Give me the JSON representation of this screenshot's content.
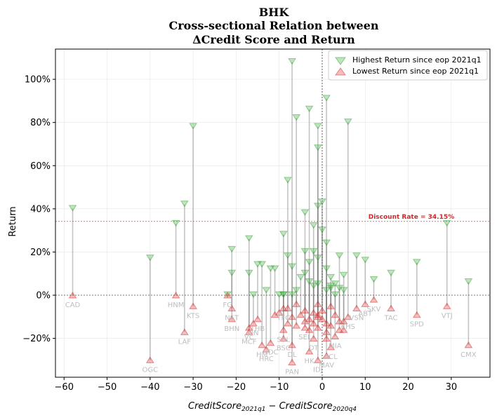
{
  "chart_data": {
    "type": "scatter",
    "title_lines": [
      "BHK",
      "Cross-sectional Relation between",
      "ΔCredit Score and Return"
    ],
    "xlabel_main": "CreditScore",
    "xlabel_sub1": "2021q1",
    "xlabel_minus": " − CreditScore",
    "xlabel_sub2": "2020q4",
    "ylabel": "Return",
    "xlim": [
      -62,
      39
    ],
    "ylim": [
      -38,
      114
    ],
    "xticks": [
      -60,
      -50,
      -40,
      -30,
      -20,
      -10,
      0,
      10,
      20,
      30
    ],
    "xtick_labels": [
      "−60",
      "−50",
      "−40",
      "−30",
      "−20",
      "−10",
      "0",
      "10",
      "20",
      "30"
    ],
    "yticks": [
      -20,
      0,
      20,
      40,
      60,
      80,
      100
    ],
    "ytick_labels": [
      "−20%",
      "0%",
      "20%",
      "40%",
      "60%",
      "80%",
      "100%"
    ],
    "grid": true,
    "legend_position": "top-right",
    "legend": [
      "Highest Return since eop 2021q1",
      "Lowest Return since eop 2021q1"
    ],
    "high_color": "#2ca02c",
    "low_color": "#d62728",
    "discount_rate": 34.15,
    "discount_label": "Discount Rate = 34.15%",
    "labeled_points": [
      {
        "label": "CAD",
        "x": -58,
        "high": 40,
        "low": 0
      },
      {
        "label": "OGC",
        "x": -40,
        "high": 17,
        "low": -30
      },
      {
        "label": "HNM",
        "x": -34,
        "high": 33,
        "low": 0
      },
      {
        "label": "LAF",
        "x": -32,
        "high": 42,
        "low": -17
      },
      {
        "label": "KTS",
        "x": -30,
        "high": 78,
        "low": -5
      },
      {
        "label": "FG",
        "x": -22,
        "high": 0,
        "low": 0
      },
      {
        "label": "NST",
        "x": -21,
        "high": 21,
        "low": -6
      },
      {
        "label": "BHN",
        "x": -21,
        "high": 10,
        "low": -11
      },
      {
        "label": "MCF",
        "x": -17,
        "high": 10,
        "low": -17
      },
      {
        "label": "VC",
        "x": -17,
        "high": 26,
        "low": -15
      },
      {
        "label": "QN",
        "x": -16,
        "high": 0,
        "low": -13
      },
      {
        "label": "THB",
        "x": -15,
        "high": 14,
        "low": -11
      },
      {
        "label": "HM",
        "x": -14,
        "high": 14,
        "low": -23
      },
      {
        "label": "HRC",
        "x": -13,
        "high": 2,
        "low": -25
      },
      {
        "label": "HDC",
        "x": -12,
        "high": 12,
        "low": -22
      },
      {
        "label": "SBL",
        "x": -9,
        "high": 0,
        "low": -16
      },
      {
        "label": "BSC",
        "x": -9,
        "high": 0,
        "low": -20
      },
      {
        "label": "DL",
        "x": -7,
        "high": 0,
        "low": -23
      },
      {
        "label": "PAN",
        "x": -7,
        "high": 108,
        "low": -31
      },
      {
        "label": "TFC",
        "x": -9,
        "high": 28,
        "low": -6
      },
      {
        "label": "SEL",
        "x": -4,
        "high": 10,
        "low": -15
      },
      {
        "label": "HK",
        "x": -3,
        "high": 6,
        "low": -26
      },
      {
        "label": "IDJ",
        "x": -1,
        "high": 5,
        "low": -30
      },
      {
        "label": "DT",
        "x": -2,
        "high": 4,
        "low": -20
      },
      {
        "label": "MAV",
        "x": 1,
        "high": 2,
        "low": -28
      },
      {
        "label": "ACL",
        "x": 2,
        "high": 3,
        "low": -24
      },
      {
        "label": "MIA",
        "x": 3,
        "high": 0,
        "low": -19
      },
      {
        "label": "VSN",
        "x": 8,
        "high": 18,
        "low": -6
      },
      {
        "label": "KHS",
        "x": 6,
        "high": 80,
        "low": -10
      },
      {
        "label": "ABT",
        "x": 10,
        "high": 16,
        "low": -4
      },
      {
        "label": "SKV",
        "x": 12,
        "high": 7,
        "low": -2
      },
      {
        "label": "TAC",
        "x": 16,
        "high": 10,
        "low": -6
      },
      {
        "label": "SPD",
        "x": 22,
        "high": 15,
        "low": -9
      },
      {
        "label": "VTJ",
        "x": 29,
        "high": 33,
        "low": -5
      },
      {
        "label": "CMX",
        "x": 34,
        "high": 6,
        "low": -23
      }
    ],
    "unlabeled_points": [
      {
        "x": -11,
        "high": 12,
        "low": -9
      },
      {
        "x": -10,
        "high": 0,
        "low": -8
      },
      {
        "x": -8,
        "high": 53,
        "low": -13
      },
      {
        "x": -8,
        "high": 18,
        "low": -6
      },
      {
        "x": -7,
        "high": 13,
        "low": -10
      },
      {
        "x": -6,
        "high": 82,
        "low": -14
      },
      {
        "x": -6,
        "high": 2,
        "low": -4
      },
      {
        "x": -5,
        "high": 8,
        "low": -9
      },
      {
        "x": -4,
        "high": 38,
        "low": -12
      },
      {
        "x": -4,
        "high": 20,
        "low": -7
      },
      {
        "x": -3,
        "high": 86,
        "low": -11
      },
      {
        "x": -3,
        "high": 15,
        "low": -16
      },
      {
        "x": -2,
        "high": 32,
        "low": -8
      },
      {
        "x": -2,
        "high": 20,
        "low": -13
      },
      {
        "x": -1,
        "high": 78,
        "low": -9
      },
      {
        "x": -1,
        "high": 68,
        "low": -10
      },
      {
        "x": -1,
        "high": 41,
        "low": -4
      },
      {
        "x": -1,
        "high": 17,
        "low": -15
      },
      {
        "x": 0,
        "high": 43,
        "low": -7
      },
      {
        "x": 0,
        "high": 30,
        "low": -11
      },
      {
        "x": 1,
        "high": 91,
        "low": -17
      },
      {
        "x": 1,
        "high": 24,
        "low": -13
      },
      {
        "x": 1,
        "high": 12,
        "low": -20
      },
      {
        "x": 2,
        "high": 8,
        "low": -5
      },
      {
        "x": 2,
        "high": 4,
        "low": -14
      },
      {
        "x": 3,
        "high": 5,
        "low": -9
      },
      {
        "x": 4,
        "high": 18,
        "low": -16
      },
      {
        "x": 4,
        "high": 3,
        "low": -12
      },
      {
        "x": 5,
        "high": 9,
        "low": -12
      },
      {
        "x": 5,
        "high": 2,
        "low": -16
      }
    ]
  }
}
